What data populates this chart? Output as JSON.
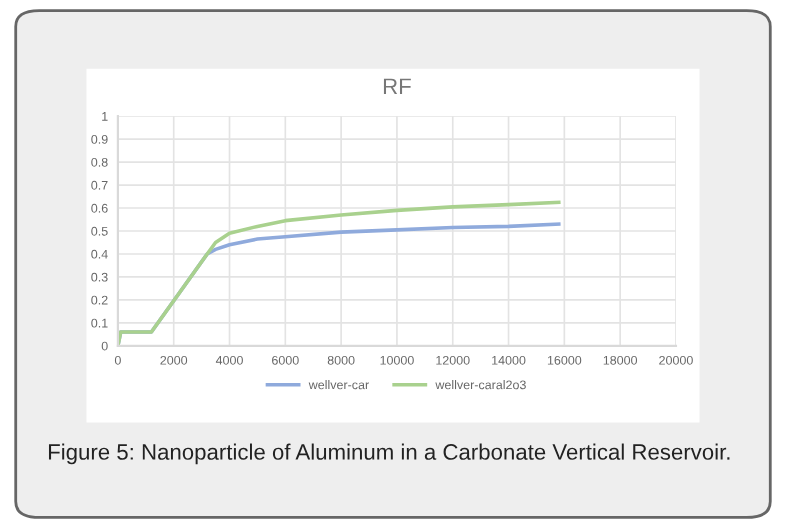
{
  "chart_data": {
    "type": "line",
    "title": "RF",
    "series": [
      {
        "name": "wellver-car",
        "color": "#8faadc",
        "x": [
          0,
          100,
          1200,
          2200,
          3200,
          3500,
          4000,
          5000,
          6000,
          8000,
          10000,
          12000,
          14000,
          15800
        ],
        "values": [
          0,
          0.06,
          0.06,
          0.23,
          0.4,
          0.42,
          0.44,
          0.465,
          0.475,
          0.495,
          0.505,
          0.515,
          0.52,
          0.53
        ]
      },
      {
        "name": "wellver-caral2o3",
        "color": "#a9d18e",
        "x": [
          0,
          100,
          1200,
          2200,
          3200,
          3500,
          4000,
          5000,
          6000,
          8000,
          10000,
          12000,
          14000,
          15800
        ],
        "values": [
          0,
          0.06,
          0.06,
          0.23,
          0.4,
          0.45,
          0.49,
          0.52,
          0.545,
          0.57,
          0.59,
          0.605,
          0.615,
          0.625
        ]
      }
    ],
    "xlim": [
      0,
      20000
    ],
    "xticks": [
      0,
      2000,
      4000,
      6000,
      8000,
      10000,
      12000,
      14000,
      16000,
      18000,
      20000
    ],
    "ylim": [
      0,
      1
    ],
    "yticks": [
      0,
      0.1,
      0.2,
      0.3,
      0.4,
      0.5,
      0.6,
      0.7,
      0.8,
      0.9,
      1
    ],
    "grid": true,
    "legend": "bottom",
    "marker": "none",
    "line_style": "solid",
    "annotations": [
      "Figure 5: Nanoparticle of Aluminum in a Carbonate Vertical Reservoir."
    ]
  }
}
